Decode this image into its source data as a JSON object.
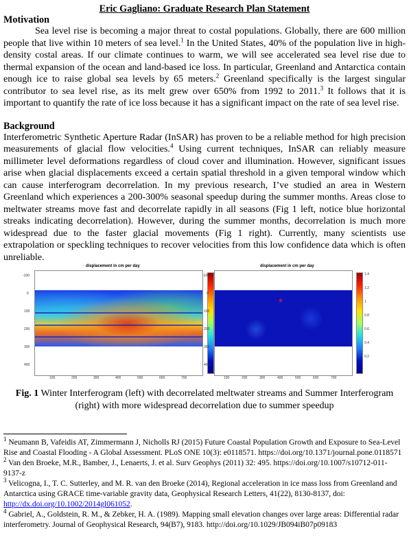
{
  "title": "Eric Gagliano: Graduate Research Plan Statement",
  "sections": {
    "motivation": {
      "heading": "Motivation",
      "p1": "Sea level rise is becoming a major threat to costal populations. Globally, there are 600 million people that live within 10 meters of sea level.",
      "p1_ref1": "1",
      "p2": " In the United States, 40% of the population live in high-density costal areas. If our climate continues to warm, we will see accelerated sea level rise due to thermal expansion of the ocean and land-based ice loss. In particular, Greenland and Antarctica contain enough ice to raise global sea levels by 65 meters.",
      "p2_ref": "2",
      "p3": " Greenland specifically is the largest singular contributor to sea level rise, as its melt grew over 650% from 1992 to 2011.",
      "p3_ref": "3",
      "p4": " It follows that it is important to quantify the rate of ice loss because it has a significant impact on the rate of sea level rise."
    },
    "background": {
      "heading": "Background",
      "p1": "Interferometric Synthetic Aperture Radar (InSAR) has proven to be a reliable method for high precision measurements of glacial flow velocities.",
      "p1_ref": "4",
      "p2": " Using current techniques, InSAR can reliably measure millimeter level deformations regardless of cloud cover and illumination. However, significant issues arise when glacial displacements exceed a certain spatial threshold in a given temporal window which can cause interferogram decorrelation. In my previous research, I’ve studied an area in Western Greenland which experiences a 200-300% seasonal speedup during the summer months. Areas close to meltwater streams move fast and decorrelate rapidly in all seasons (Fig 1 left, notice blue horizontal streaks indicating decorrelation). However, during the summer months, decorrelation is much more widespread due to the faster glacial movements (Fig 1 right). Currently, many scientists use extrapolation or speckling techniques to recover velocities from this low confidence data which is often unreliable."
    }
  },
  "figure": {
    "left": {
      "title": "displacement in cm per day",
      "yticks": [
        "-100",
        "0",
        "100",
        "200",
        "300",
        "400"
      ],
      "xticks": [
        "100",
        "200",
        "300",
        "400",
        "500",
        "600",
        "700"
      ],
      "cbar_ticks": [
        "12",
        "10",
        "8",
        "6",
        "4",
        "2"
      ]
    },
    "right": {
      "title": "displacement in cm per day",
      "yticks": [
        "-100",
        "0",
        "100",
        "200",
        "300",
        "400"
      ],
      "xticks": [
        "100",
        "200",
        "300",
        "400",
        "500",
        "600",
        "700"
      ],
      "cbar_ticks": [
        "1.4",
        "1.2",
        "1",
        "0.8",
        "0.6",
        "0.4",
        "0.2"
      ]
    },
    "caption_label": "Fig. 1",
    "caption_text": " Winter Interferogram (left) with decorrelated meltwater streams and Summer Interferogram (right) with more widespread decorrelation due to summer speedup"
  },
  "footnotes": [
    {
      "num": "1",
      "text": " Neumann B, Vafeidis AT, Zimmermann J, Nicholls RJ (2015) Future Coastal Population Growth and Exposure to Sea-Level Rise and Coastal Flooding - A Global Assessment. PLoS ONE 10(3): e0118571. https://doi.org/10.1371/journal.pone.0118571"
    },
    {
      "num": "2",
      "text": " Van den Broeke, M.R., Bamber, J., Lenaerts, J. et al. Surv Geophys (2011) 32: 495. https://doi.org/10.1007/s10712-011-9137-z"
    },
    {
      "num": "3",
      "text": " Velicogna, I., T. C. Sutterley, and M. R. van den Broeke (2014), Regional acceleration in ice mass loss from Greenland and Antarctica using GRACE time-variable gravity data, Geophysical Research Letters, 41(22), 8130-8137, doi: ",
      "link": "http://dx.doi.org/10.1002/2014gl061052",
      "after": "."
    },
    {
      "num": "4",
      "text": " Gabriel, A., Goldstein, R. M., & Zebker, H. A. (1989). Mapping small elevation changes over large areas: Differential radar interferometry. Journal of Geophysical Research, 94(B7), 9183. http://doi.org/10.1029/JB094iB07p09183"
    }
  ]
}
